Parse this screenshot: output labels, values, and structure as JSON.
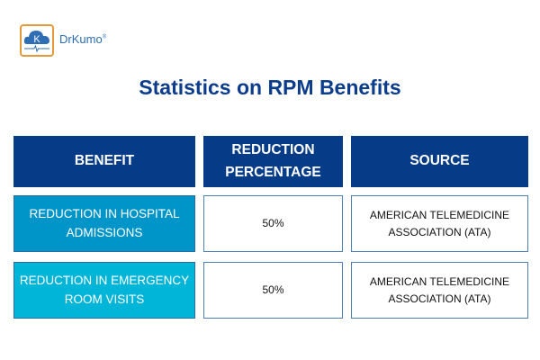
{
  "brand": {
    "name": "DrKumo",
    "mark": "®",
    "logo_letter": "K"
  },
  "title": "Statistics on RPM Benefits",
  "table": {
    "headers": [
      "BENEFIT",
      "REDUCTION PERCENTAGE",
      "SOURCE"
    ],
    "rows": [
      {
        "benefit": "REDUCTION IN HOSPITAL ADMISSIONS",
        "percentage": "50%",
        "source": "AMERICAN TELEMEDICINE ASSOCIATION (ATA)"
      },
      {
        "benefit": "REDUCTION IN EMERGENCY ROOM VISITS",
        "percentage": "50%",
        "source": "AMERICAN TELEMEDICINE ASSOCIATION (ATA)"
      }
    ]
  },
  "colors": {
    "header": "#063b88",
    "row1": "#0095c8",
    "row2": "#00b5d8",
    "title": "#0b3d8c",
    "logo_border": "#e39a3b"
  }
}
